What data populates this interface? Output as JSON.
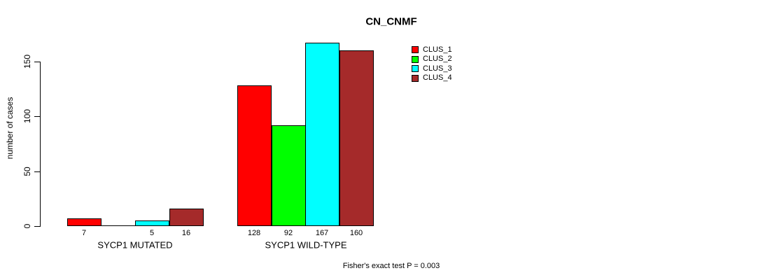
{
  "chart_data": {
    "type": "bar",
    "title": "CN_CNMF",
    "ylabel": "number of cases",
    "xlabel": "",
    "yticks": [
      0,
      50,
      100,
      150
    ],
    "ylim": [
      0,
      170
    ],
    "grid": false,
    "legend_position": "right",
    "series": [
      {
        "name": "CLUS_1",
        "color": "#ff0000"
      },
      {
        "name": "CLUS_2",
        "color": "#00ff00"
      },
      {
        "name": "CLUS_3",
        "color": "#00ffff"
      },
      {
        "name": "CLUS_4",
        "color": "#a52a2a"
      }
    ],
    "groups": [
      {
        "label": "SYCP1 MUTATED",
        "values": [
          7,
          0,
          5,
          16
        ],
        "value_labels": [
          "7",
          "",
          "5",
          "16"
        ]
      },
      {
        "label": "SYCP1 WILD-TYPE",
        "values": [
          128,
          92,
          167,
          160
        ],
        "value_labels": [
          "128",
          "92",
          "167",
          "160"
        ]
      }
    ],
    "annotation": "Fisher's exact test P = 0.003"
  }
}
